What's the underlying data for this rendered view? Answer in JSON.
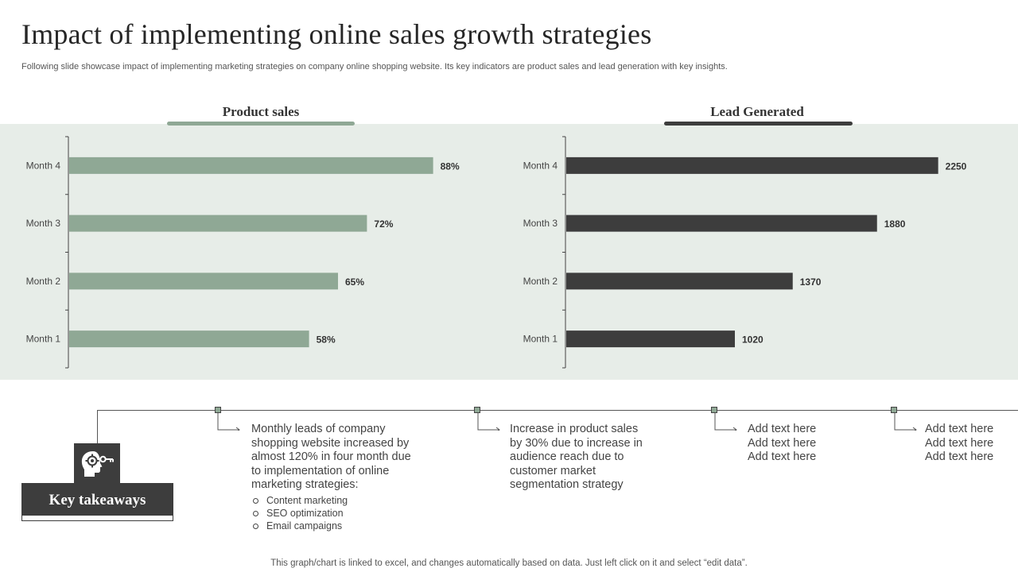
{
  "page": {
    "title": "Impact of implementing online sales growth strategies",
    "subtitle": "Following slide showcase impact of implementing marketing strategies on company online shopping website. Its key indicators are product sales and lead generation with key insights.",
    "footer": "This graph/chart is linked to excel, and changes automatically based on data. Just left click on it and select “edit data”."
  },
  "colors": {
    "band": "#e7ede8",
    "product_bar": "#8fa895",
    "lead_bar": "#3d3d3d",
    "accent_dark": "#3d3d3d"
  },
  "chart_data": [
    {
      "type": "bar",
      "orientation": "horizontal",
      "title": "Product sales",
      "categories": [
        "Month 4",
        "Month 3",
        "Month 2",
        "Month 1"
      ],
      "values": [
        88,
        72,
        65,
        58
      ],
      "value_labels": [
        "88%",
        "72%",
        "65%",
        "58%"
      ],
      "unit": "%",
      "xlim": [
        0,
        100
      ],
      "grid": false
    },
    {
      "type": "bar",
      "orientation": "horizontal",
      "title": "Lead Generated",
      "categories": [
        "Month 4",
        "Month 3",
        "Month 2",
        "Month 1"
      ],
      "values": [
        2250,
        1880,
        1370,
        1020
      ],
      "value_labels": [
        "2250",
        "1880",
        "1370",
        "1020"
      ],
      "xlim": [
        0,
        2550
      ],
      "grid": false
    }
  ],
  "takeaways": {
    "label": "Key takeaways",
    "icon": "head-gear-key-icon",
    "items": [
      {
        "text": "Monthly leads of company shopping website increased by almost 120% in four month due to implementation of online marketing strategies:",
        "bullets": [
          "Content marketing",
          "SEO optimization",
          "Email campaigns"
        ]
      },
      {
        "text": "Increase in product sales by 30% due to increase in audience reach due to customer market segmentation strategy"
      },
      {
        "lines": [
          "Add text here",
          "Add text here",
          "Add text here"
        ]
      },
      {
        "lines": [
          "Add text here",
          "Add text here",
          "Add text here"
        ]
      }
    ]
  }
}
